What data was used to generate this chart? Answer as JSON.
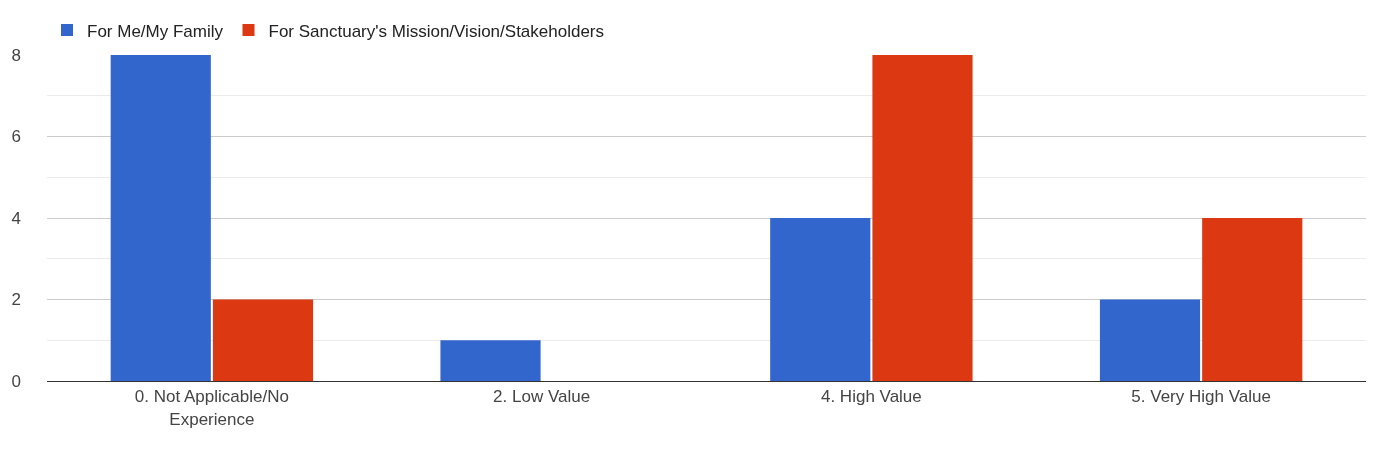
{
  "chart_data": {
    "type": "bar",
    "categories": [
      "0. Not Applicable/No Experience",
      "2. Low Value",
      "4. High Value",
      "5. Very High Value"
    ],
    "series": [
      {
        "name": "For Me/My Family",
        "color": "#3366cc",
        "values": [
          8,
          1,
          4,
          2
        ]
      },
      {
        "name": "For Sanctuary's Mission/Vision/Stakeholders",
        "color": "#dc3912",
        "values": [
          2,
          0,
          8,
          4
        ]
      }
    ],
    "ylim": [
      0,
      8
    ],
    "yticks": [
      0,
      {
        "value": 1,
        "label": null
      },
      2,
      {
        "value": 3,
        "label": null
      },
      4,
      {
        "value": 5,
        "label": null
      },
      6,
      {
        "value": 7,
        "label": null
      },
      8
    ],
    "grid": "y",
    "legend": "top left"
  }
}
